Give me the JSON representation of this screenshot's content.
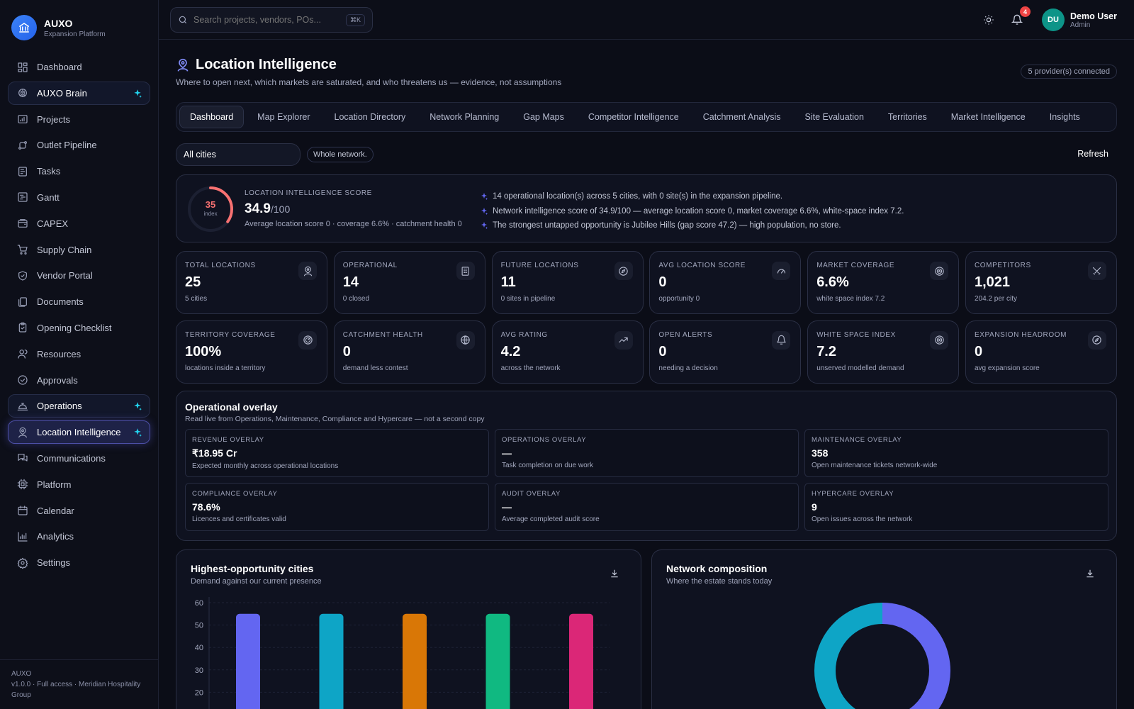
{
  "brand": {
    "name": "AUXO",
    "subtitle": "Expansion Platform"
  },
  "nav": [
    {
      "label": "Dashboard",
      "icon": "dashboard-icon"
    },
    {
      "label": "AUXO Brain",
      "icon": "brain-icon",
      "highlight": true,
      "spark": true
    },
    {
      "label": "Projects",
      "icon": "projects-icon"
    },
    {
      "label": "Outlet Pipeline",
      "icon": "pipeline-icon"
    },
    {
      "label": "Tasks",
      "icon": "tasks-icon"
    },
    {
      "label": "Gantt",
      "icon": "gantt-icon"
    },
    {
      "label": "CAPEX",
      "icon": "capex-icon"
    },
    {
      "label": "Supply Chain",
      "icon": "cart-icon"
    },
    {
      "label": "Vendor Portal",
      "icon": "shield-icon"
    },
    {
      "label": "Documents",
      "icon": "documents-icon"
    },
    {
      "label": "Opening Checklist",
      "icon": "clipboard-icon"
    },
    {
      "label": "Resources",
      "icon": "users-icon"
    },
    {
      "label": "Approvals",
      "icon": "check-circle-icon"
    },
    {
      "label": "Operations",
      "icon": "cloche-icon",
      "highlight": true,
      "spark": true
    },
    {
      "label": "Location Intelligence",
      "icon": "location-user-icon",
      "active": true,
      "spark": true
    },
    {
      "label": "Communications",
      "icon": "chat-icon"
    },
    {
      "label": "Platform",
      "icon": "chip-icon"
    },
    {
      "label": "Calendar",
      "icon": "calendar-icon"
    },
    {
      "label": "Analytics",
      "icon": "analytics-icon"
    },
    {
      "label": "Settings",
      "icon": "gear-icon"
    }
  ],
  "footer": {
    "line1": "AUXO",
    "line2": "v1.0.0 · Full access · Meridian Hospitality Group"
  },
  "topbar": {
    "search_placeholder": "Search projects, vendors, POs...",
    "shortcut": "⌘K",
    "notifications": "4",
    "user": {
      "initials": "DU",
      "name": "Demo User",
      "role": "Admin"
    }
  },
  "page": {
    "title": "Location Intelligence",
    "subtitle": "Where to open next, which markets are saturated, and who threatens us — evidence, not assumptions",
    "providers": "5 provider(s) connected"
  },
  "tabs": [
    "Dashboard",
    "Map Explorer",
    "Location Directory",
    "Network Planning",
    "Gap Maps",
    "Competitor Intelligence",
    "Catchment Analysis",
    "Site Evaluation",
    "Territories",
    "Market Intelligence",
    "Insights"
  ],
  "filters": {
    "city": "All cities",
    "scope": "Whole network.",
    "refresh": "Refresh"
  },
  "score": {
    "gauge_value": "35",
    "gauge_label": "index",
    "gauge_fraction": 0.35,
    "label": "LOCATION INTELLIGENCE SCORE",
    "value": "34.9",
    "out_of": "/100",
    "meta": "Average location score 0 · coverage 6.6% · catchment health 0",
    "insights": [
      "14 operational location(s) across 5 cities, with 0 site(s) in the expansion pipeline.",
      "Network intelligence score of 34.9/100 — average location score 0, market coverage 6.6%, white-space index 7.2.",
      "The strongest untapped opportunity is Jubilee Hills (gap score 47.2) — high population, no store."
    ]
  },
  "kpis": [
    {
      "label": "TOTAL LOCATIONS",
      "value": "25",
      "sub": "5 cities",
      "icon": "location-user-icon"
    },
    {
      "label": "OPERATIONAL",
      "value": "14",
      "sub": "0 closed",
      "icon": "building-icon"
    },
    {
      "label": "FUTURE LOCATIONS",
      "value": "11",
      "sub": "0 sites in pipeline",
      "icon": "compass-icon"
    },
    {
      "label": "AVG LOCATION SCORE",
      "value": "0",
      "sub": "opportunity 0",
      "icon": "speedometer-icon"
    },
    {
      "label": "MARKET COVERAGE",
      "value": "6.6%",
      "sub": "white space index 7.2",
      "icon": "target-icon"
    },
    {
      "label": "COMPETITORS",
      "value": "1,021",
      "sub": "204.2 per city",
      "icon": "swords-icon"
    },
    {
      "label": "TERRITORY COVERAGE",
      "value": "100%",
      "sub": "locations inside a territory",
      "icon": "radar-icon"
    },
    {
      "label": "CATCHMENT HEALTH",
      "value": "0",
      "sub": "demand less contest",
      "icon": "globe-icon"
    },
    {
      "label": "AVG RATING",
      "value": "4.2",
      "sub": "across the network",
      "icon": "trending-up-icon"
    },
    {
      "label": "OPEN ALERTS",
      "value": "0",
      "sub": "needing a decision",
      "icon": "bell-icon"
    },
    {
      "label": "WHITE SPACE INDEX",
      "value": "7.2",
      "sub": "unserved modelled demand",
      "icon": "target-icon"
    },
    {
      "label": "EXPANSION HEADROOM",
      "value": "0",
      "sub": "avg expansion score",
      "icon": "compass-icon"
    }
  ],
  "overlay": {
    "title": "Operational overlay",
    "subtitle": "Read live from Operations, Maintenance, Compliance and Hypercare — not a second copy",
    "cells": [
      {
        "label": "REVENUE OVERLAY",
        "value": "₹18.95 Cr",
        "sub": "Expected monthly across operational locations"
      },
      {
        "label": "OPERATIONS OVERLAY",
        "value": "—",
        "sub": "Task completion on due work"
      },
      {
        "label": "MAINTENANCE OVERLAY",
        "value": "358",
        "sub": "Open maintenance tickets network-wide"
      },
      {
        "label": "COMPLIANCE OVERLAY",
        "value": "78.6%",
        "sub": "Licences and certificates valid"
      },
      {
        "label": "AUDIT OVERLAY",
        "value": "—",
        "sub": "Average completed audit score"
      },
      {
        "label": "HYPERCARE OVERLAY",
        "value": "9",
        "sub": "Open issues across the network"
      }
    ]
  },
  "chart_data": [
    {
      "type": "bar",
      "title": "Highest-opportunity cities",
      "subtitle": "Demand against our current presence",
      "yticks": [
        "60",
        "50",
        "40",
        "30",
        "20"
      ],
      "ylim": [
        20,
        60
      ],
      "values": [
        55,
        55,
        55,
        55,
        55
      ],
      "colors": [
        "#6366f1",
        "#0ea5c6",
        "#d97706",
        "#10b981",
        "#db2777"
      ],
      "grid": true
    },
    {
      "type": "pie",
      "title": "Network composition",
      "subtitle": "Where the estate stands today",
      "values": [
        14,
        11
      ],
      "colors": [
        "#6366f1",
        "#0ea5c6"
      ]
    }
  ]
}
